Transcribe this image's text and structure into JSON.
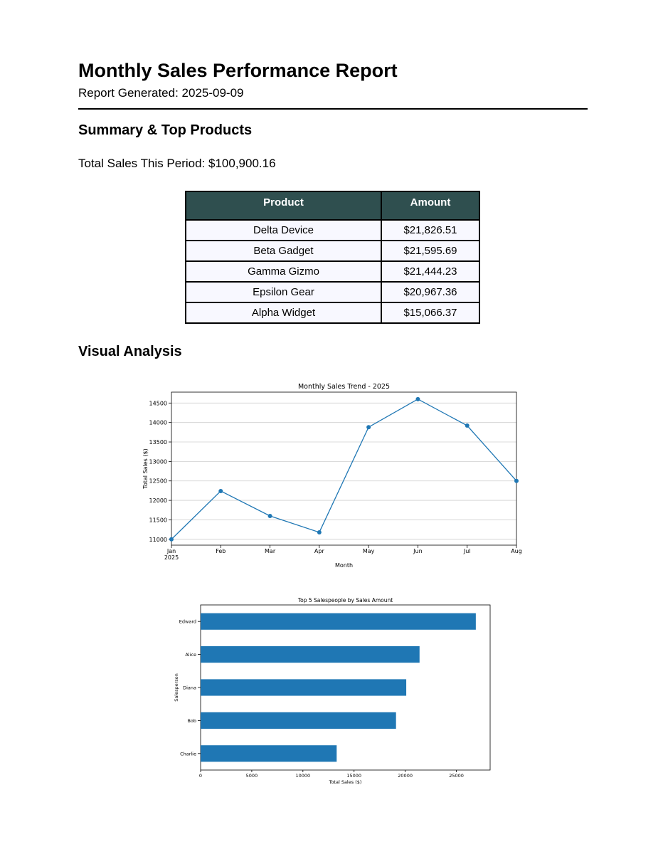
{
  "report": {
    "title": "Monthly Sales Performance Report",
    "generated": "Report Generated: 2025-09-09"
  },
  "summary": {
    "heading": "Summary & Top Products",
    "total_sales": "Total Sales This Period: $100,900.16",
    "table": {
      "headers": [
        "Product",
        "Amount"
      ],
      "rows": [
        [
          "Delta Device",
          "$21,826.51"
        ],
        [
          "Beta Gadget",
          "$21,595.69"
        ],
        [
          "Gamma Gizmo",
          "$21,444.23"
        ],
        [
          "Epsilon Gear",
          "$20,967.36"
        ],
        [
          "Alpha Widget",
          "$15,066.37"
        ]
      ]
    }
  },
  "visual": {
    "heading": "Visual Analysis"
  },
  "chart_data": [
    {
      "type": "line",
      "title": "Monthly Sales Trend - 2025",
      "xlabel": "Month",
      "ylabel": "Total Sales ($)",
      "categories": [
        "Jan",
        "Feb",
        "Mar",
        "Apr",
        "May",
        "Jun",
        "Jul",
        "Aug"
      ],
      "x_sublabel": "2025",
      "values": [
        11000,
        12240,
        11600,
        11180,
        13880,
        14600,
        13920,
        12500
      ],
      "yticks": [
        11000,
        11500,
        12000,
        12500,
        13000,
        13500,
        14000,
        14500
      ],
      "ylim": [
        10850,
        14780
      ],
      "grid": "y",
      "color": "#1f77b4"
    },
    {
      "type": "bar",
      "orientation": "horizontal",
      "title": "Top 5 Salespeople by Sales Amount",
      "xlabel": "Total Sales ($)",
      "ylabel": "Salesperson",
      "categories": [
        "Edward",
        "Alice",
        "Diana",
        "Bob",
        "Charlie"
      ],
      "values": [
        26900,
        21400,
        20100,
        19100,
        13300
      ],
      "xticks": [
        0,
        5000,
        10000,
        15000,
        20000,
        25000
      ],
      "xlim": [
        0,
        28300
      ],
      "color": "#1f77b4"
    }
  ]
}
